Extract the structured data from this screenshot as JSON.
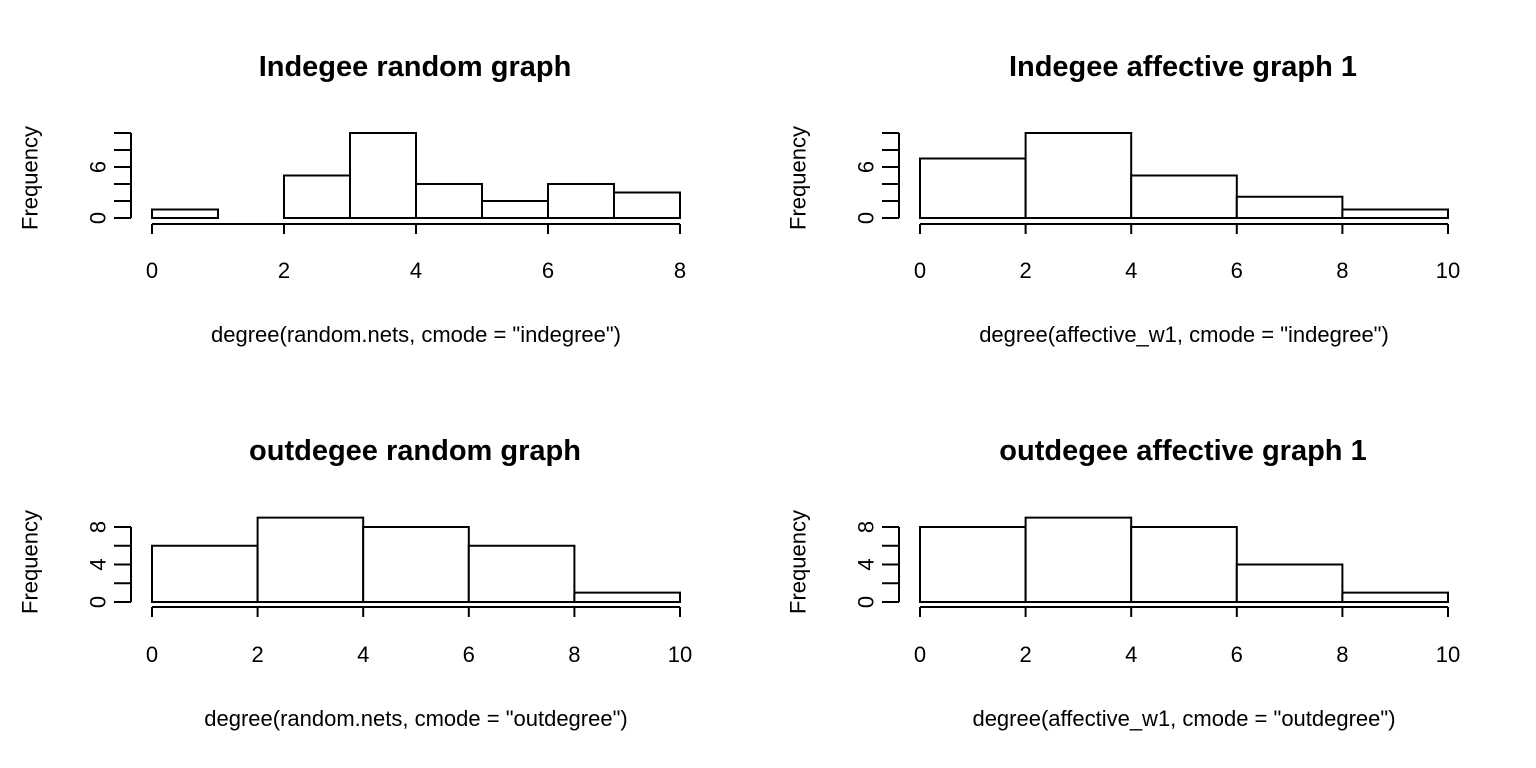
{
  "chart_data": [
    {
      "type": "bar",
      "title": "Indegee random graph",
      "xlabel": "degree(random.nets, cmode = \"indegree\")",
      "ylabel": "Frequency",
      "bins": [
        [
          0,
          1
        ],
        [
          1,
          2
        ],
        [
          2,
          3
        ],
        [
          3,
          4
        ],
        [
          4,
          5
        ],
        [
          5,
          6
        ],
        [
          6,
          7
        ],
        [
          7,
          8
        ]
      ],
      "values": [
        1,
        0,
        5,
        10,
        4,
        2,
        4,
        3
      ],
      "xlim": [
        0,
        8
      ],
      "xticks": [
        0,
        2,
        4,
        6,
        8
      ],
      "ylim": [
        0,
        10
      ],
      "yticks": [
        0,
        2,
        4,
        6,
        8,
        10
      ],
      "ytick_labels": [
        "0",
        "",
        "",
        "6",
        "",
        ""
      ]
    },
    {
      "type": "bar",
      "title": "Indegee affective graph 1",
      "xlabel": "degree(affective_w1, cmode = \"indegree\")",
      "ylabel": "Frequency",
      "bins": [
        [
          0,
          2
        ],
        [
          2,
          4
        ],
        [
          4,
          6
        ],
        [
          6,
          8
        ],
        [
          8,
          10
        ]
      ],
      "values": [
        7,
        10,
        5,
        2.5,
        1
      ],
      "xlim": [
        0,
        10
      ],
      "xticks": [
        0,
        2,
        4,
        6,
        8,
        10
      ],
      "ylim": [
        0,
        10
      ],
      "yticks": [
        0,
        2,
        4,
        6,
        8,
        10
      ],
      "ytick_labels": [
        "0",
        "",
        "",
        "6",
        "",
        ""
      ]
    },
    {
      "type": "bar",
      "title": "outdegee random graph",
      "xlabel": "degree(random.nets, cmode = \"outdegree\")",
      "ylabel": "Frequency",
      "bins": [
        [
          0,
          2
        ],
        [
          2,
          4
        ],
        [
          4,
          6
        ],
        [
          6,
          8
        ],
        [
          8,
          10
        ]
      ],
      "values": [
        6,
        9,
        8,
        6,
        1
      ],
      "xlim": [
        0,
        10
      ],
      "xticks": [
        0,
        2,
        4,
        6,
        8,
        10
      ],
      "ylim": [
        0,
        8
      ],
      "yticks": [
        0,
        2,
        4,
        6,
        8
      ],
      "ytick_labels": [
        "0",
        "",
        "4",
        "",
        "8"
      ]
    },
    {
      "type": "bar",
      "title": "outdegee affective graph 1",
      "xlabel": "degree(affective_w1, cmode = \"outdegree\")",
      "ylabel": "Frequency",
      "bins": [
        [
          0,
          2
        ],
        [
          2,
          4
        ],
        [
          4,
          6
        ],
        [
          6,
          8
        ],
        [
          8,
          10
        ]
      ],
      "values": [
        8,
        9,
        8,
        4,
        1
      ],
      "xlim": [
        0,
        10
      ],
      "xticks": [
        0,
        2,
        4,
        6,
        8,
        10
      ],
      "ylim": [
        0,
        8
      ],
      "yticks": [
        0,
        2,
        4,
        6,
        8
      ],
      "ytick_labels": [
        "0",
        "",
        "4",
        "",
        "8"
      ]
    }
  ]
}
